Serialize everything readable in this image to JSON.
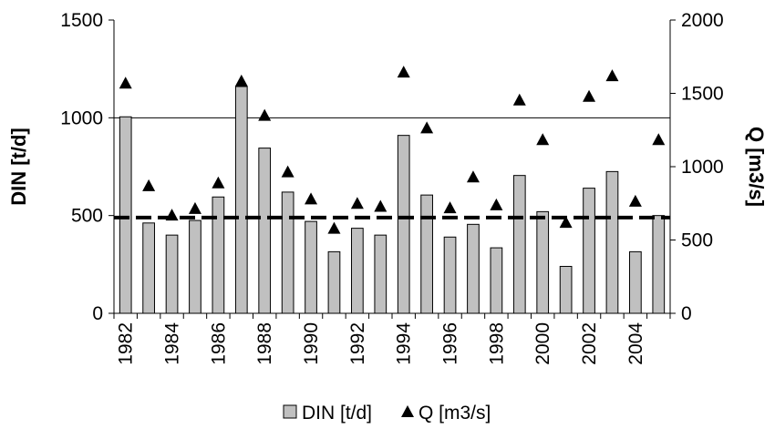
{
  "chart_data": {
    "type": "bar",
    "x": [
      1982,
      1983,
      1984,
      1985,
      1986,
      1987,
      1988,
      1989,
      1990,
      1991,
      1992,
      1993,
      1994,
      1995,
      1996,
      1997,
      1998,
      1999,
      2000,
      2001,
      2002,
      2003,
      2004,
      2005
    ],
    "x_tick_labels": [
      "1982",
      "1984",
      "1986",
      "1988",
      "1990",
      "1992",
      "1994",
      "1996",
      "1998",
      "2000",
      "2002",
      "2004"
    ],
    "series": [
      {
        "name": "DIN [t/d]",
        "kind": "bar",
        "axis": "left",
        "color": "#c0c0c0",
        "values": [
          1005,
          462,
          400,
          475,
          595,
          1160,
          845,
          620,
          470,
          315,
          435,
          400,
          910,
          605,
          390,
          455,
          335,
          705,
          520,
          240,
          640,
          725,
          315,
          500
        ]
      },
      {
        "name": "Q [m3/s]",
        "kind": "marker",
        "marker": "triangle",
        "axis": "right",
        "color": "#000000",
        "values": [
          1570,
          870,
          670,
          715,
          890,
          1585,
          1350,
          965,
          780,
          580,
          750,
          730,
          1645,
          1265,
          720,
          930,
          740,
          1455,
          1185,
          620,
          1480,
          1620,
          765,
          1185
        ]
      }
    ],
    "reference_line": {
      "axis": "left",
      "value": 490,
      "style": "dashed"
    },
    "y_left": {
      "label": "DIN [t/d]",
      "range": [
        0,
        1500
      ],
      "ticks": [
        0,
        500,
        1000,
        1500
      ]
    },
    "y_right": {
      "label": "Q [m3/s]",
      "range": [
        0,
        2000
      ],
      "ticks": [
        0,
        500,
        1000,
        1500,
        2000
      ]
    },
    "xlabel": "",
    "grid": "horizontal at 1000",
    "legend_placement": "bottom-center"
  }
}
